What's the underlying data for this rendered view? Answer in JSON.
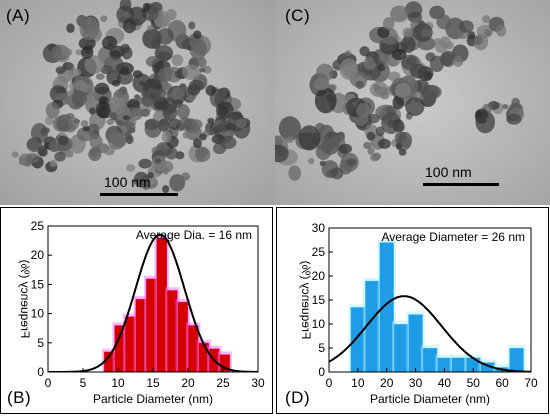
{
  "panels": {
    "a": {
      "letter": "(A)",
      "scale_label": "100 nm"
    },
    "c": {
      "letter": "(C)",
      "scale_label": "100 nm"
    },
    "b": {
      "letter": "(B)"
    },
    "d": {
      "letter": "(D)"
    }
  },
  "colors": {
    "hist_b_bar": "#d40000",
    "hist_b_glow": "#ff66ff",
    "hist_d_bar": "#1e9ce6",
    "hist_d_glow": "#a8f0ff",
    "fit_line": "#000000"
  },
  "chart_data": [
    {
      "type": "bar",
      "annotation": "Average Dia. = 16 nm",
      "xlabel": "Particle Diameter (nm)",
      "ylabel": "Frequency (%)",
      "xlim": [
        0,
        30
      ],
      "ylim": [
        0,
        25
      ],
      "xticks": [
        "0",
        "5",
        "10",
        "15",
        "20",
        "25",
        "30"
      ],
      "yticks": [
        "0",
        "5",
        "10",
        "15",
        "20",
        "25"
      ],
      "bins": [
        {
          "x0": 8,
          "x1": 9.5,
          "value": 3.5
        },
        {
          "x0": 9.5,
          "x1": 11,
          "value": 8
        },
        {
          "x0": 11,
          "x1": 12.5,
          "value": 9.5
        },
        {
          "x0": 12.5,
          "x1": 14,
          "value": 12.5
        },
        {
          "x0": 14,
          "x1": 15.5,
          "value": 16
        },
        {
          "x0": 15.5,
          "x1": 17,
          "value": 23
        },
        {
          "x0": 17,
          "x1": 18.5,
          "value": 14
        },
        {
          "x0": 18.5,
          "x1": 20,
          "value": 12
        },
        {
          "x0": 20,
          "x1": 21.5,
          "value": 8
        },
        {
          "x0": 21.5,
          "x1": 23,
          "value": 5
        },
        {
          "x0": 23,
          "x1": 24.5,
          "value": 4
        },
        {
          "x0": 24.5,
          "x1": 26,
          "value": 3
        }
      ],
      "fit": {
        "type": "gaussian",
        "mean": 16,
        "sd": 3.5,
        "peak": 23.5
      }
    },
    {
      "type": "bar",
      "annotation": "Average Diameter = 26 nm",
      "xlabel": "Particle Diameter (nm)",
      "ylabel": "Frequency (%)",
      "xlim": [
        0,
        70
      ],
      "ylim": [
        0,
        30
      ],
      "xticks": [
        "0",
        "10",
        "20",
        "30",
        "40",
        "50",
        "60",
        "70"
      ],
      "yticks": [
        "0",
        "5",
        "10",
        "15",
        "20",
        "25",
        "30"
      ],
      "bins": [
        {
          "x0": 7.5,
          "x1": 12.5,
          "value": 13.5
        },
        {
          "x0": 12.5,
          "x1": 17.5,
          "value": 19
        },
        {
          "x0": 17.5,
          "x1": 22.5,
          "value": 27
        },
        {
          "x0": 22.5,
          "x1": 27.5,
          "value": 10
        },
        {
          "x0": 27.5,
          "x1": 32.5,
          "value": 12
        },
        {
          "x0": 32.5,
          "x1": 37.5,
          "value": 5
        },
        {
          "x0": 37.5,
          "x1": 42.5,
          "value": 3
        },
        {
          "x0": 42.5,
          "x1": 47.5,
          "value": 3
        },
        {
          "x0": 47.5,
          "x1": 52.5,
          "value": 3
        },
        {
          "x0": 52.5,
          "x1": 57.5,
          "value": 2
        },
        {
          "x0": 57.5,
          "x1": 62.5,
          "value": 1
        },
        {
          "x0": 62.5,
          "x1": 67.5,
          "value": 5
        }
      ],
      "fit": {
        "type": "gaussian",
        "mean": 26,
        "sd": 13,
        "peak": 15.8
      }
    }
  ]
}
